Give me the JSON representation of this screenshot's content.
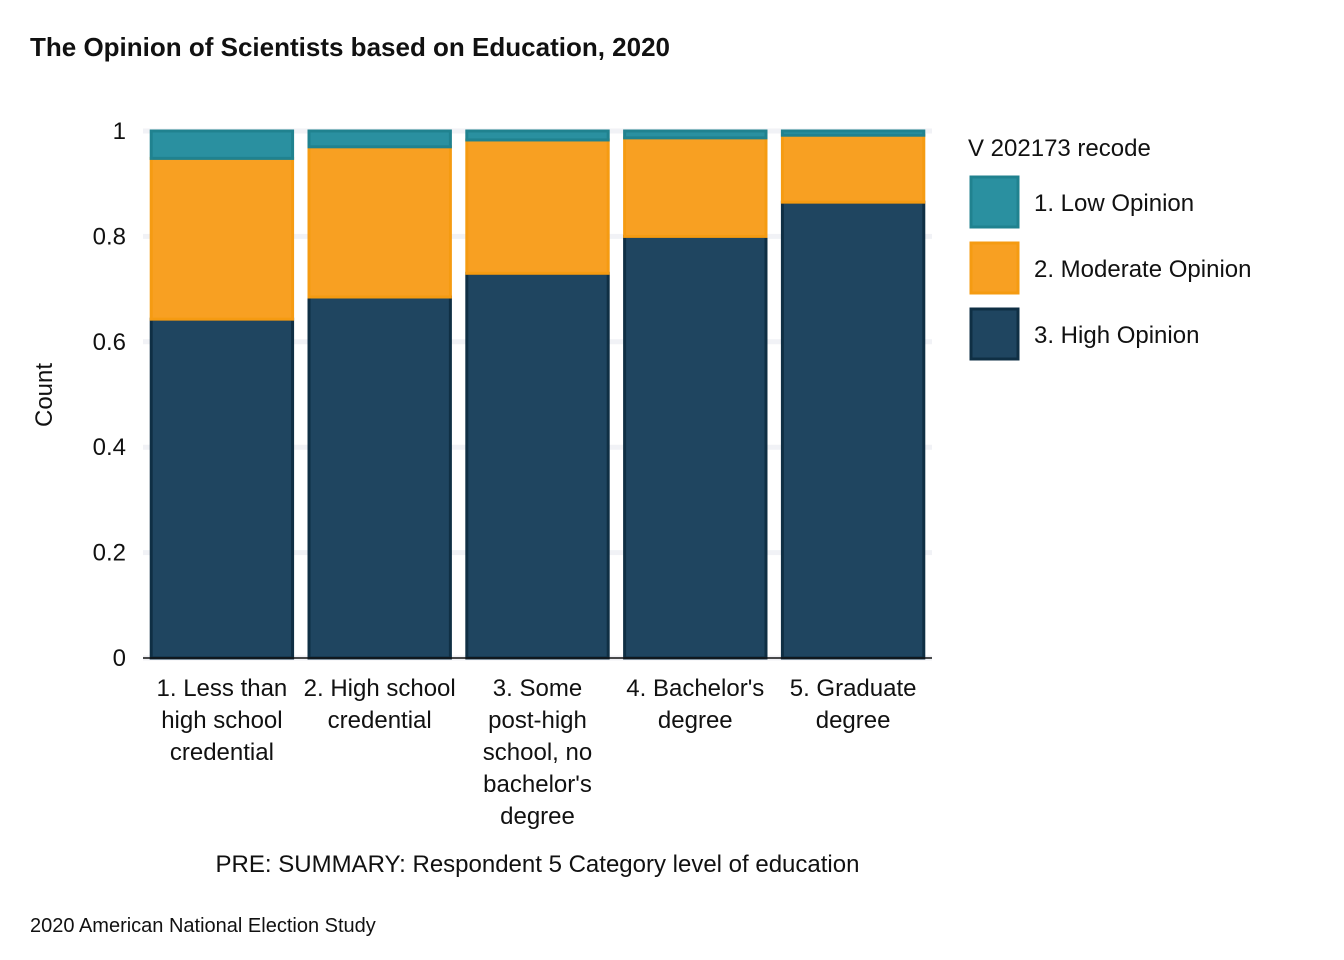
{
  "chart_data": {
    "type": "bar",
    "stacked": true,
    "title": "The Opinion of Scientists based on Education, 2020",
    "xlabel": "PRE: SUMMARY: Respondent 5 Category level of education",
    "ylabel": "Count",
    "caption": "2020 American National Election Study",
    "ylim": [
      0,
      1
    ],
    "yticks": [
      "0",
      "0.2",
      "0.4",
      "0.6",
      "0.8",
      "1"
    ],
    "grid": true,
    "legend_position": "right",
    "legend_title": "V 202173 recode",
    "categories": [
      "1. Less than high school credential",
      "2. High school credential",
      "3. Some post-high school, no bachelor's degree",
      "4. Bachelor's degree",
      "5. Graduate degree"
    ],
    "category_lines": [
      [
        "1. Less than",
        "high school",
        "credential"
      ],
      [
        "2. High school",
        "credential"
      ],
      [
        "3. Some",
        "post-high",
        "school, no",
        "bachelor's",
        "degree"
      ],
      [
        "4. Bachelor's",
        "degree"
      ],
      [
        "5. Graduate",
        "degree"
      ]
    ],
    "series": [
      {
        "name": "3. High Opinion",
        "color": "#1f4560",
        "stroke": "#0f2f44",
        "values": [
          0.643,
          0.685,
          0.73,
          0.8,
          0.865
        ]
      },
      {
        "name": "2. Moderate Opinion",
        "color": "#f8a022",
        "stroke": "#f59b12",
        "values": [
          0.305,
          0.285,
          0.253,
          0.187,
          0.127
        ]
      },
      {
        "name": "1. Low Opinion",
        "color": "#2a90a0",
        "stroke": "#20828f",
        "values": [
          0.052,
          0.03,
          0.017,
          0.013,
          0.008
        ]
      }
    ],
    "legend_order": [
      "1. Low Opinion",
      "2. Moderate Opinion",
      "3. High Opinion"
    ]
  }
}
